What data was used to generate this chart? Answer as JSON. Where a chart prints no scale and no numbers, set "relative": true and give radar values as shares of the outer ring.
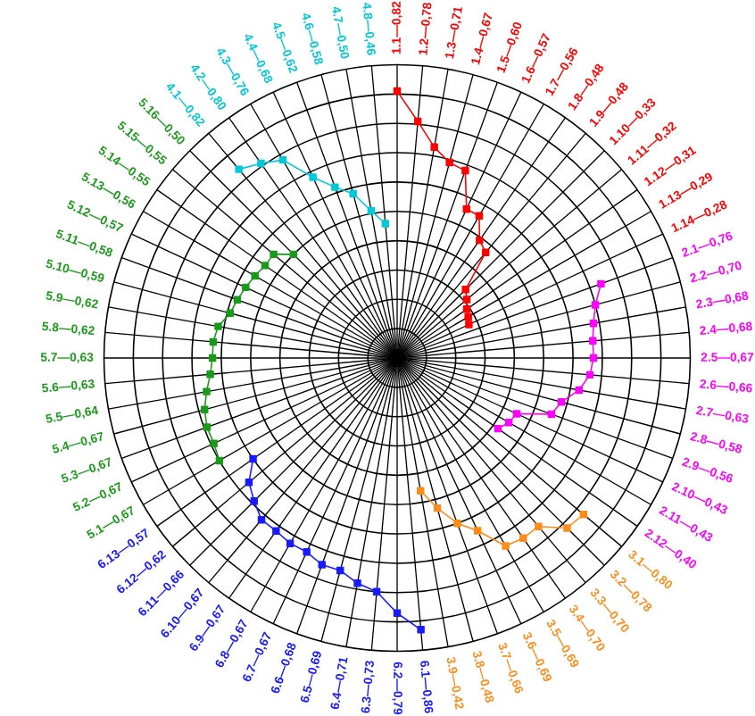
{
  "chart_data": {
    "type": "radar",
    "relative": true,
    "grid": true,
    "marker": "square",
    "categories": [
      "1.1—0,82",
      "1.2—0,78",
      "1.3—0,71",
      "1.4—0,67",
      "1.5—0,60",
      "1.6—0,57",
      "1.7—0,56",
      "1.8—0,48",
      "1.9—0,48",
      "1.10—0,33",
      "1.11—0,32",
      "1.12—0,31",
      "1.13—0,29",
      "1.14—0,28",
      "2.1—0,76",
      "2.2—0,70",
      "2.3—0,68",
      "2.4—0,68",
      "2.5—0,67",
      "2.6—0,66",
      "2.7—0,63",
      "2.8—0,58",
      "2.9—0,56",
      "2.10—0,43",
      "2.11—0,43",
      "2.12—0,40",
      "3.1—0,80",
      "3.2—0,78",
      "3.3—0,70",
      "3.4—0,70",
      "3.5—0,69",
      "3.6—0,69",
      "3.7—0,66",
      "3.8—0,48",
      "3.9—0,42",
      "6.1—0,86",
      "6.2—0,79",
      "6.3—0,73",
      "6.4—0,71",
      "6.5—0,69",
      "6.6—0,68",
      "6.7—0,67",
      "6.8—0,67",
      "6.9—0,67",
      "6.10—0,67",
      "6.11—0,66",
      "6.12—0,62",
      "6.13—0,57",
      "5.1—0,67",
      "5.2—0,67",
      "5.3—0,67",
      "5.4—0,67",
      "5.5—0,64",
      "5.6—0,63",
      "5.7—0,63",
      "5.8—0,62",
      "5.9—0,62",
      "5.10—0,59",
      "5.11—0,58",
      "5.12—0,57",
      "5.13—0,56",
      "5.14—0,55",
      "5.15—0,55",
      "5.16—0,50",
      "4.1—0,82",
      "4.2—0,80",
      "4.3—0,76",
      "4.4—0,68",
      "4.5—0,62",
      "4.6—0,58",
      "4.7—0,50",
      "4.8—0,46"
    ],
    "series": [
      {
        "color": "#ff0000",
        "values": [
          0.91,
          0.81,
          0.73,
          0.69,
          0.68,
          0.56,
          0.56,
          0.49,
          0.47,
          0.33,
          0.31,
          0.29,
          0.28,
          0.27,
          null,
          null,
          null,
          null,
          null,
          null,
          null,
          null,
          null,
          null,
          null,
          null,
          null,
          null,
          null,
          null,
          null,
          null,
          null,
          null,
          null,
          null,
          null,
          null,
          null,
          null,
          null,
          null,
          null,
          null,
          null,
          null,
          null,
          null,
          null,
          null,
          null,
          null,
          null,
          null,
          null,
          null,
          null,
          null,
          null,
          null,
          null,
          null,
          null,
          null,
          null,
          null,
          null,
          null,
          null,
          null,
          null,
          null
        ]
      },
      {
        "color": "#ff00ff",
        "values": [
          null,
          null,
          null,
          null,
          null,
          null,
          null,
          null,
          null,
          null,
          null,
          null,
          null,
          null,
          0.74,
          0.7,
          0.68,
          0.67,
          0.67,
          0.66,
          0.63,
          0.58,
          0.56,
          0.45,
          0.44,
          0.42,
          null,
          null,
          null,
          null,
          null,
          null,
          null,
          null,
          null,
          null,
          null,
          null,
          null,
          null,
          null,
          null,
          null,
          null,
          null,
          null,
          null,
          null,
          null,
          null,
          null,
          null,
          null,
          null,
          null,
          null,
          null,
          null,
          null,
          null,
          null,
          null,
          null,
          null,
          null,
          null,
          null,
          null,
          null,
          null,
          null,
          null
        ]
      },
      {
        "color": "#ff8c1a",
        "values": [
          null,
          null,
          null,
          null,
          null,
          null,
          null,
          null,
          null,
          null,
          null,
          null,
          null,
          null,
          null,
          null,
          null,
          null,
          null,
          null,
          null,
          null,
          null,
          null,
          null,
          null,
          0.83,
          0.82,
          0.75,
          0.75,
          0.74,
          0.65,
          0.6,
          0.53,
          0.46,
          null,
          null,
          null,
          null,
          null,
          null,
          null,
          null,
          null,
          null,
          null,
          null,
          null,
          null,
          null,
          null,
          null,
          null,
          null,
          null,
          null,
          null,
          null,
          null,
          null,
          null,
          null,
          null,
          null,
          null,
          null,
          null,
          null,
          null,
          null,
          null,
          null
        ]
      },
      {
        "color": "#1a1aff",
        "values": [
          null,
          null,
          null,
          null,
          null,
          null,
          null,
          null,
          null,
          null,
          null,
          null,
          null,
          null,
          null,
          null,
          null,
          null,
          null,
          null,
          null,
          null,
          null,
          null,
          null,
          null,
          null,
          null,
          null,
          null,
          null,
          null,
          null,
          null,
          null,
          0.93,
          0.87,
          0.8,
          0.78,
          0.75,
          0.75,
          0.73,
          0.73,
          0.72,
          0.72,
          0.69,
          0.66,
          0.6,
          null,
          null,
          null,
          null,
          null,
          null,
          null,
          null,
          null,
          null,
          null,
          null,
          null,
          null,
          null,
          null,
          null,
          null,
          null,
          null,
          null,
          null,
          null,
          null
        ]
      },
      {
        "color": "#1a9a1a",
        "values": [
          null,
          null,
          null,
          null,
          null,
          null,
          null,
          null,
          null,
          null,
          null,
          null,
          null,
          null,
          null,
          null,
          null,
          null,
          null,
          null,
          null,
          null,
          null,
          null,
          null,
          null,
          null,
          null,
          null,
          null,
          null,
          null,
          null,
          null,
          null,
          null,
          null,
          null,
          null,
          null,
          null,
          null,
          null,
          null,
          null,
          null,
          null,
          null,
          0.7,
          0.69,
          0.69,
          0.68,
          0.66,
          0.64,
          0.63,
          0.63,
          0.62,
          0.59,
          0.58,
          0.57,
          0.56,
          0.55,
          0.55,
          0.5,
          null,
          null,
          null,
          null,
          null,
          null,
          null,
          null
        ]
      },
      {
        "color": "#00c8d8",
        "values": [
          null,
          null,
          null,
          null,
          null,
          null,
          null,
          null,
          null,
          null,
          null,
          null,
          null,
          null,
          null,
          null,
          null,
          null,
          null,
          null,
          null,
          null,
          null,
          null,
          null,
          null,
          null,
          null,
          null,
          null,
          null,
          null,
          null,
          null,
          null,
          null,
          null,
          null,
          null,
          null,
          null,
          null,
          null,
          null,
          null,
          null,
          null,
          null,
          null,
          null,
          null,
          null,
          null,
          null,
          null,
          null,
          null,
          null,
          null,
          null,
          null,
          null,
          null,
          null,
          0.84,
          0.81,
          0.78,
          0.68,
          0.62,
          0.58,
          0.51,
          0.46
        ]
      }
    ]
  }
}
